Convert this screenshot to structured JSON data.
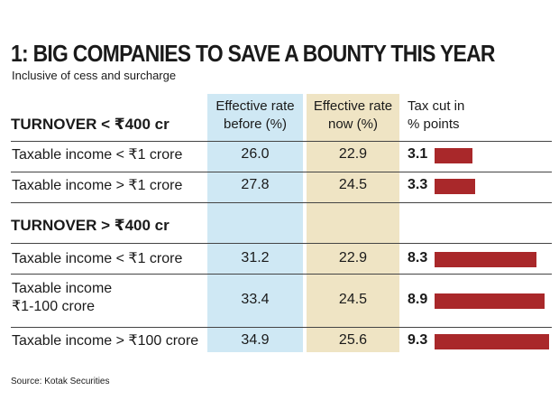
{
  "title": "1: BIG COMPANIES TO SAVE A BOUNTY THIS YEAR",
  "subtitle": "Inclusive of cess and surcharge",
  "columns": {
    "before": [
      "Effective rate",
      "before (%)"
    ],
    "now": [
      "Effective rate",
      "now (%)"
    ],
    "cut": [
      "Tax cut in",
      "% points"
    ]
  },
  "source": "Source: Kotak Securities",
  "colors": {
    "bar": "#a9282a",
    "before_bg": "#cfe8f4",
    "now_bg": "#efe4c4"
  },
  "chart_data": {
    "type": "table",
    "groups": [
      {
        "name": "TURNOVER < ₹400 cr",
        "rows": [
          {
            "label": [
              "Taxable income < ₹1 crore"
            ],
            "before": "26.0",
            "now": "22.9",
            "cut": "3.1"
          },
          {
            "label": [
              "Taxable income > ₹1 crore"
            ],
            "before": "27.8",
            "now": "24.5",
            "cut": "3.3"
          }
        ]
      },
      {
        "name": "TURNOVER > ₹400 cr",
        "rows": [
          {
            "label": [
              "Taxable income < ₹1 crore"
            ],
            "before": "31.2",
            "now": "22.9",
            "cut": "8.3"
          },
          {
            "label": [
              "Taxable income",
              "₹1-100 crore"
            ],
            "before": "33.4",
            "now": "24.5",
            "cut": "8.9"
          },
          {
            "label": [
              "Taxable income > ₹100 crore"
            ],
            "before": "34.9",
            "now": "25.6",
            "cut": "9.3"
          }
        ]
      }
    ]
  }
}
